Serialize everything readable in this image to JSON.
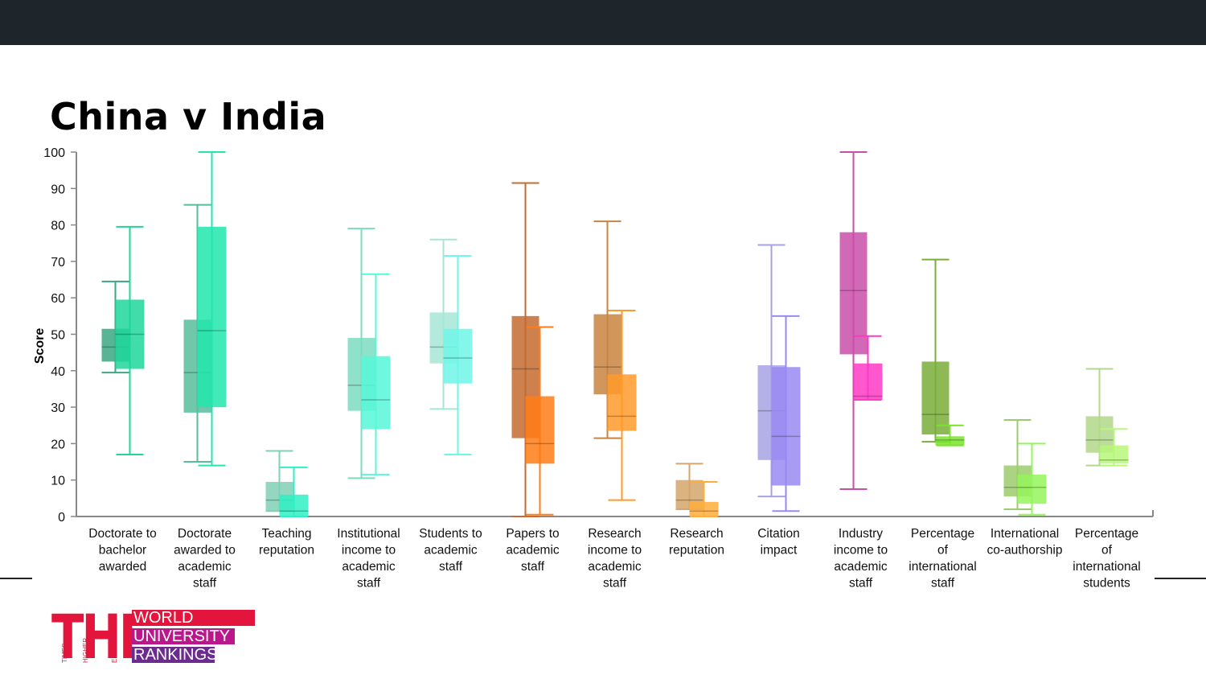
{
  "slide": {
    "title": "China v India"
  },
  "logo": {
    "letters": "THE",
    "small_words": [
      "TIMES",
      "HIGHER",
      "EDUCATION"
    ],
    "bands": [
      "WORLD",
      "UNIVERSITY",
      "RANKINGS"
    ],
    "band_colors": [
      "#e3153c",
      "#b9178b",
      "#6c2b8e"
    ]
  },
  "chart_data": {
    "type": "box",
    "ylabel": "Score",
    "ylim": [
      0,
      100
    ],
    "yticks": [
      0,
      10,
      20,
      30,
      40,
      50,
      60,
      70,
      80,
      90,
      100
    ],
    "categories": [
      [
        "Doctorate to",
        "bachelor",
        "awarded"
      ],
      [
        "Doctorate",
        "awarded to",
        "academic",
        "staff"
      ],
      [
        "Teaching",
        "reputation"
      ],
      [
        "Institutional",
        "income to",
        "academic",
        "staff"
      ],
      [
        "Students to",
        "academic",
        "staff"
      ],
      [
        "Papers to",
        "academic",
        "staff"
      ],
      [
        "Research",
        "income to",
        "academic",
        "staff"
      ],
      [
        "Research",
        "reputation"
      ],
      [
        "Citation",
        "impact"
      ],
      [
        "Industry",
        "income to",
        "academic",
        "staff"
      ],
      [
        "Percentage",
        "of",
        "international",
        "staff"
      ],
      [
        "International",
        "co-authorship"
      ],
      [
        "Percentage",
        "of",
        "international",
        "students"
      ]
    ],
    "boxes": [
      [
        {
          "min": 39.5,
          "q1": 42.5,
          "median": 46.5,
          "q3": 51.5,
          "max": 64.5,
          "color": "#3aa883"
        },
        {
          "min": 17,
          "q1": 40.5,
          "median": 50,
          "q3": 59.5,
          "max": 79.5,
          "color": "#1fd69b"
        }
      ],
      [
        {
          "min": 15,
          "q1": 28.5,
          "median": 39.5,
          "q3": 54,
          "max": 85.5,
          "color": "#58bd9b"
        },
        {
          "min": 14,
          "q1": 30,
          "median": 51,
          "q3": 79.5,
          "max": 100,
          "color": "#22e6ad"
        }
      ],
      [
        {
          "min": 1.5,
          "q1": 1.5,
          "median": 4.5,
          "q3": 9.5,
          "max": 18,
          "color": "#80d0b6"
        },
        {
          "min": 0,
          "q1": 0,
          "median": 1.5,
          "q3": 6,
          "max": 13.5,
          "color": "#2ff0c4"
        }
      ],
      [
        {
          "min": 10.5,
          "q1": 29,
          "median": 36,
          "q3": 49,
          "max": 79,
          "color": "#7ddcc0"
        },
        {
          "min": 11.5,
          "q1": 24,
          "median": 32,
          "q3": 44,
          "max": 66.5,
          "color": "#57f7d8"
        }
      ],
      [
        {
          "min": 29.5,
          "q1": 42,
          "median": 46.5,
          "q3": 56,
          "max": 76,
          "color": "#a7e6d6"
        },
        {
          "min": 17,
          "q1": 36.5,
          "median": 43.5,
          "q3": 51.5,
          "max": 71.5,
          "color": "#6ef6e6"
        }
      ],
      [
        {
          "min": 0,
          "q1": 21.5,
          "median": 40.5,
          "q3": 55,
          "max": 91.5,
          "color": "#c36b30"
        },
        {
          "min": 0.5,
          "q1": 14.5,
          "median": 20,
          "q3": 33,
          "max": 52,
          "color": "#ff7c17"
        }
      ],
      [
        {
          "min": 21.5,
          "q1": 33.5,
          "median": 41,
          "q3": 55.5,
          "max": 81,
          "color": "#c8843f"
        },
        {
          "min": 4.5,
          "q1": 23.5,
          "median": 27.5,
          "q3": 39,
          "max": 56.5,
          "color": "#ff9a2a"
        }
      ],
      [
        {
          "min": 2,
          "q1": 2,
          "median": 4.5,
          "q3": 10,
          "max": 14.5,
          "color": "#d5a66b"
        },
        {
          "min": 0,
          "q1": 0,
          "median": 1.5,
          "q3": 4,
          "max": 9.5,
          "color": "#ffad3c"
        }
      ],
      [
        {
          "min": 5.5,
          "q1": 15.5,
          "median": 29,
          "q3": 41.5,
          "max": 74.5,
          "color": "#a7a2e4"
        },
        {
          "min": 1.5,
          "q1": 8.5,
          "median": 22,
          "q3": 41,
          "max": 55,
          "color": "#9889f2"
        }
      ],
      [
        {
          "min": 7.5,
          "q1": 44.5,
          "median": 62,
          "q3": 78,
          "max": 100,
          "color": "#c94fa9"
        },
        {
          "min": 32,
          "q1": 32,
          "median": 33,
          "q3": 42,
          "max": 49.5,
          "color": "#ff39c4"
        }
      ],
      [
        {
          "min": 20.5,
          "q1": 22.5,
          "median": 28,
          "q3": 42.5,
          "max": 70.5,
          "color": "#7aad3a"
        },
        {
          "min": 19.5,
          "q1": 19.5,
          "median": 21,
          "q3": 22,
          "max": 25,
          "color": "#79e32b"
        }
      ],
      [
        {
          "min": 2,
          "q1": 5.5,
          "median": 8,
          "q3": 14,
          "max": 26.5,
          "color": "#9bcc6c"
        },
        {
          "min": 0.5,
          "q1": 3.5,
          "median": 8,
          "q3": 11.5,
          "max": 20,
          "color": "#95f55c"
        }
      ],
      [
        {
          "min": 14,
          "q1": 17.5,
          "median": 21,
          "q3": 27.5,
          "max": 40.5,
          "color": "#b2d889"
        },
        {
          "min": 14,
          "q1": 14.5,
          "median": 15.5,
          "q3": 19.5,
          "max": 24,
          "color": "#b7f77a"
        }
      ]
    ],
    "grid": false,
    "legend": "none"
  }
}
